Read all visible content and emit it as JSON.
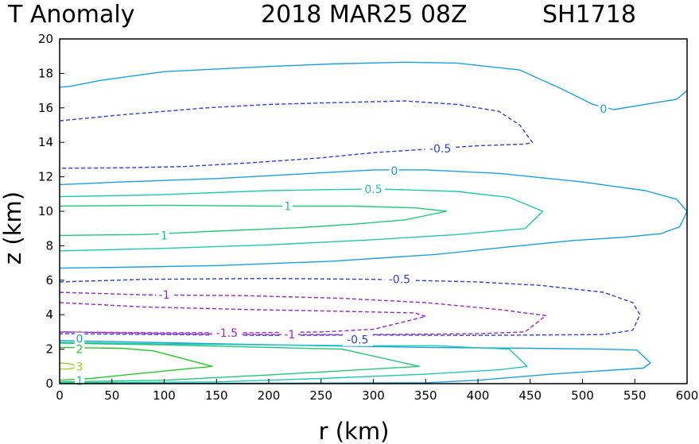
{
  "chart_data": {
    "type": "contour",
    "title_left": "T Anomaly",
    "title_date": "2018 MAR25 08Z",
    "title_storm": "SH1718",
    "xlabel": "r (km)",
    "ylabel": "z (km)",
    "xlim": [
      0,
      600
    ],
    "ylim": [
      0,
      20
    ],
    "xticks": [
      0,
      50,
      100,
      150,
      200,
      250,
      300,
      350,
      400,
      450,
      500,
      550,
      600
    ],
    "yticks": [
      0,
      2,
      4,
      6,
      8,
      10,
      12,
      14,
      16,
      18,
      20
    ],
    "colors": {
      "c0": "#1a9fe0",
      "cneg05": "#2f3fd6",
      "cneg1": "#a020c8",
      "c05": "#1fc8b4",
      "c1": "#22c87a",
      "c2": "#28c828",
      "c3": "#9ad420"
    },
    "contours": [
      {
        "level": "0",
        "color": "c0",
        "dashed": false,
        "points": [
          [
            0,
            17.2
          ],
          [
            10,
            17.25
          ],
          [
            40,
            17.6
          ],
          [
            100,
            18.1
          ],
          [
            200,
            18.4
          ],
          [
            260,
            18.55
          ],
          [
            330,
            18.65
          ],
          [
            380,
            18.6
          ],
          [
            440,
            18.2
          ],
          [
            480,
            17.1
          ],
          [
            510,
            16.2
          ],
          [
            530,
            15.9
          ],
          [
            550,
            16.1
          ],
          [
            570,
            16.3
          ],
          [
            590,
            16.5
          ],
          [
            600,
            17.0
          ]
        ]
      },
      {
        "level": "-0.5",
        "color": "cneg05",
        "dashed": true,
        "points": [
          [
            0,
            15.25
          ],
          [
            60,
            15.6
          ],
          [
            140,
            16.0
          ],
          [
            200,
            16.2
          ],
          [
            260,
            16.3
          ],
          [
            330,
            16.4
          ],
          [
            380,
            16.2
          ],
          [
            420,
            15.8
          ],
          [
            440,
            15.0
          ],
          [
            452,
            14.0
          ],
          [
            445,
            13.9
          ],
          [
            400,
            13.8
          ],
          [
            350,
            13.6
          ],
          [
            300,
            13.4
          ],
          [
            250,
            13.1
          ],
          [
            180,
            12.8
          ],
          [
            120,
            12.6
          ],
          [
            60,
            12.52
          ],
          [
            0,
            12.5
          ]
        ]
      },
      {
        "level": "0",
        "color": "c0",
        "dashed": false,
        "points": [
          [
            0,
            11.55
          ],
          [
            60,
            11.7
          ],
          [
            150,
            11.9
          ],
          [
            240,
            12.2
          ],
          [
            300,
            12.4
          ],
          [
            350,
            12.4
          ],
          [
            420,
            12.2
          ],
          [
            500,
            11.7
          ],
          [
            560,
            11.2
          ],
          [
            590,
            10.7
          ],
          [
            600,
            10.0
          ],
          [
            593,
            9.1
          ],
          [
            575,
            8.7
          ],
          [
            540,
            8.5
          ],
          [
            490,
            8.3
          ],
          [
            440,
            8.0
          ],
          [
            360,
            7.5
          ],
          [
            260,
            7.1
          ],
          [
            150,
            6.85
          ],
          [
            60,
            6.75
          ],
          [
            0,
            6.7
          ]
        ]
      },
      {
        "level": "0.5",
        "color": "c05",
        "dashed": false,
        "points": [
          [
            0,
            10.85
          ],
          [
            90,
            10.95
          ],
          [
            200,
            11.2
          ],
          [
            300,
            11.3
          ],
          [
            380,
            11.15
          ],
          [
            430,
            10.8
          ],
          [
            462,
            10.0
          ],
          [
            445,
            9.0
          ],
          [
            380,
            8.65
          ],
          [
            300,
            8.35
          ],
          [
            200,
            8.05
          ],
          [
            100,
            7.85
          ],
          [
            0,
            7.7
          ]
        ]
      },
      {
        "level": "1",
        "color": "c1",
        "dashed": false,
        "points": [
          [
            0,
            10.3
          ],
          [
            100,
            10.35
          ],
          [
            200,
            10.3
          ],
          [
            280,
            10.3
          ],
          [
            340,
            10.2
          ],
          [
            370,
            10.0
          ],
          [
            330,
            9.5
          ],
          [
            280,
            9.25
          ],
          [
            230,
            9.05
          ],
          [
            150,
            8.85
          ],
          [
            80,
            8.65
          ],
          [
            0,
            8.6
          ]
        ]
      },
      {
        "level": "-0.5",
        "color": "cneg05",
        "dashed": true,
        "points": [
          [
            0,
            5.9
          ],
          [
            80,
            6.05
          ],
          [
            200,
            6.1
          ],
          [
            300,
            6.05
          ],
          [
            400,
            5.9
          ],
          [
            460,
            5.7
          ],
          [
            520,
            5.3
          ],
          [
            548,
            4.7
          ],
          [
            555,
            4.0
          ],
          [
            548,
            3.1
          ],
          [
            520,
            2.85
          ],
          [
            400,
            2.8
          ],
          [
            300,
            2.82
          ],
          [
            200,
            2.8
          ],
          [
            100,
            2.85
          ],
          [
            0,
            2.9
          ]
        ]
      },
      {
        "level": "-1",
        "color": "cneg1",
        "dashed": true,
        "points": [
          [
            0,
            5.3
          ],
          [
            80,
            5.15
          ],
          [
            180,
            5.1
          ],
          [
            270,
            4.95
          ],
          [
            350,
            4.7
          ],
          [
            420,
            4.3
          ],
          [
            465,
            3.95
          ],
          [
            445,
            3.0
          ],
          [
            400,
            2.9
          ],
          [
            300,
            2.85
          ],
          [
            200,
            2.85
          ],
          [
            100,
            2.9
          ],
          [
            0,
            3.0
          ]
        ]
      },
      {
        "level": "-1.5",
        "color": "cneg1",
        "dashed": true,
        "points": [
          [
            0,
            4.7
          ],
          [
            80,
            4.45
          ],
          [
            180,
            4.3
          ],
          [
            270,
            4.2
          ],
          [
            340,
            4.1
          ],
          [
            350,
            3.9
          ],
          [
            300,
            3.15
          ],
          [
            250,
            3.0
          ],
          [
            180,
            2.95
          ],
          [
            100,
            2.95
          ],
          [
            0,
            3.0
          ]
        ]
      },
      {
        "level": "0",
        "color": "c0",
        "dashed": false,
        "points": [
          [
            0,
            2.5
          ],
          [
            120,
            2.35
          ],
          [
            250,
            2.2
          ],
          [
            350,
            2.1
          ],
          [
            450,
            2.05
          ],
          [
            520,
            2.0
          ],
          [
            552,
            1.95
          ],
          [
            565,
            1.2
          ],
          [
            558,
            0.9
          ],
          [
            520,
            0.75
          ],
          [
            470,
            0.55
          ],
          [
            400,
            0.2
          ],
          [
            350,
            0.05
          ],
          [
            0,
            0
          ]
        ]
      },
      {
        "level": "0.5",
        "color": "c05",
        "dashed": false,
        "points": [
          [
            0,
            2.4
          ],
          [
            100,
            2.3
          ],
          [
            200,
            2.25
          ],
          [
            300,
            2.2
          ],
          [
            360,
            2.2
          ],
          [
            430,
            2.0
          ],
          [
            447,
            1.0
          ],
          [
            420,
            0.8
          ],
          [
            350,
            0.55
          ],
          [
            250,
            0.3
          ],
          [
            150,
            0.1
          ],
          [
            0,
            0.05
          ]
        ]
      },
      {
        "level": "1",
        "color": "c1",
        "dashed": false,
        "points": [
          [
            0,
            2.35
          ],
          [
            100,
            2.25
          ],
          [
            200,
            2.1
          ],
          [
            270,
            2.0
          ],
          [
            344,
            1.0
          ],
          [
            300,
            0.85
          ],
          [
            200,
            0.5
          ],
          [
            100,
            0.2
          ],
          [
            0,
            0.1
          ]
        ]
      },
      {
        "level": "2",
        "color": "c2",
        "dashed": false,
        "points": [
          [
            0,
            2.1
          ],
          [
            60,
            2.05
          ],
          [
            90,
            1.9
          ],
          [
            146,
            1.0
          ],
          [
            120,
            0.85
          ],
          [
            70,
            0.55
          ],
          [
            30,
            0.3
          ],
          [
            0,
            0.2
          ]
        ]
      },
      {
        "level": "3",
        "color": "c3",
        "dashed": false,
        "points": [
          [
            0,
            1.2
          ],
          [
            10,
            1.15
          ],
          [
            18,
            1.0
          ],
          [
            10,
            0.85
          ],
          [
            0,
            0.85
          ]
        ]
      }
    ],
    "contour_labels": [
      {
        "text": "0",
        "x": 520,
        "y": 15.95,
        "color": "c0"
      },
      {
        "text": "-0.5",
        "x": 364,
        "y": 13.65,
        "color": "cneg05"
      },
      {
        "text": "0",
        "x": 320,
        "y": 12.35,
        "color": "c0"
      },
      {
        "text": "0.5",
        "x": 300,
        "y": 11.3,
        "color": "c05"
      },
      {
        "text": "1",
        "x": 218,
        "y": 10.3,
        "color": "c1"
      },
      {
        "text": "1",
        "x": 100,
        "y": 8.6,
        "color": "c1"
      },
      {
        "text": "-0.5",
        "x": 325,
        "y": 6.05,
        "color": "cneg05"
      },
      {
        "text": "-1",
        "x": 100,
        "y": 5.15,
        "color": "cneg1"
      },
      {
        "text": "-1.5",
        "x": 160,
        "y": 2.95,
        "color": "cneg1"
      },
      {
        "text": "-1",
        "x": 220,
        "y": 2.85,
        "color": "cneg1"
      },
      {
        "text": "-0.5",
        "x": 285,
        "y": 2.55,
        "color": "cneg05"
      },
      {
        "text": "0",
        "x": 19,
        "y": 2.6,
        "color": "c0"
      },
      {
        "text": "2",
        "x": 19,
        "y": 2.0,
        "color": "c2"
      },
      {
        "text": "3",
        "x": 19,
        "y": 1.0,
        "color": "c3"
      },
      {
        "text": "1",
        "x": 19,
        "y": 0.15,
        "color": "c1"
      }
    ]
  }
}
